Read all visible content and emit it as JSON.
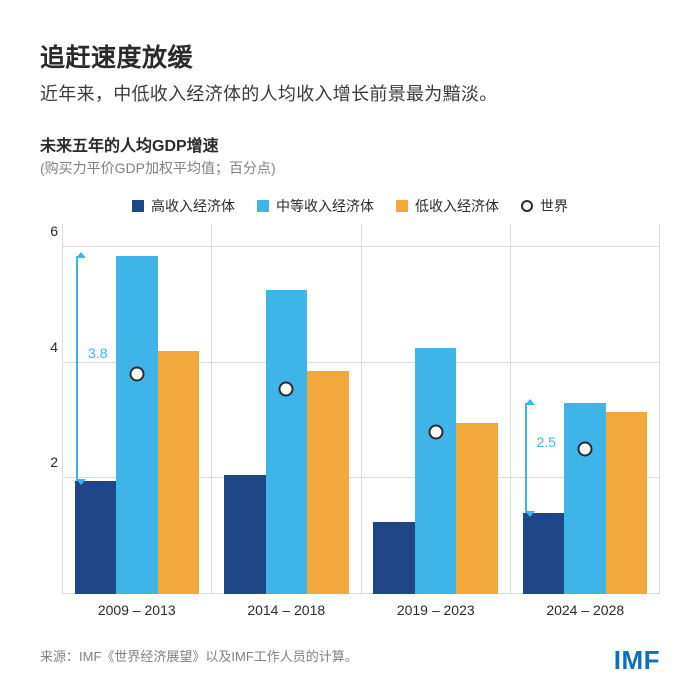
{
  "title": "追赶速度放缓",
  "subtitle": "近年来，中低收入经济体的人均收入增长前景最为黯淡。",
  "chart_title": "未来五年的人均GDP增速",
  "chart_subtitle": "(购买力平价GDP加权平均值；百分点)",
  "legend": {
    "high": "高收入经济体",
    "middle": "中等收入经济体",
    "low": "低收入经济体",
    "world": "世界"
  },
  "colors": {
    "high": "#1f4788",
    "middle": "#3fb4e8",
    "low": "#f2a83b",
    "world_border": "#2a2a2a",
    "bracket": "#3fb4e8",
    "grid": "#d9d9d9",
    "text": "#2a2a2a",
    "muted": "#808080",
    "logo": "#0b6fc2",
    "background": "#ffffff"
  },
  "y": {
    "min": 0,
    "max": 6.4,
    "ticks": [
      2,
      4,
      6
    ]
  },
  "periods": [
    "2009 – 2013",
    "2014 – 2018",
    "2019 – 2023",
    "2024 – 2028"
  ],
  "series": {
    "high": [
      1.95,
      2.05,
      1.25,
      1.4
    ],
    "middle": [
      5.85,
      5.25,
      4.25,
      3.3
    ],
    "low": [
      4.2,
      3.85,
      2.95,
      3.15
    ],
    "world": [
      3.8,
      3.55,
      2.8,
      2.5
    ]
  },
  "annotations": [
    {
      "group": 0,
      "from": 1.95,
      "to": 5.85,
      "label": "3.8",
      "side": "left"
    },
    {
      "group": 3,
      "from": 1.4,
      "to": 3.3,
      "label": "2.5",
      "side": "left-inner"
    }
  ],
  "source": "来源：IMF《世界经济展望》以及IMF工作人员的计算。",
  "logo": "IMF",
  "typography": {
    "title_size": 25,
    "subtitle_size": 18,
    "chart_title_size": 16,
    "chart_sub_size": 14,
    "legend_size": 14,
    "axis_size": 14,
    "source_size": 13
  },
  "chart_type": "grouped-bar-with-marker"
}
